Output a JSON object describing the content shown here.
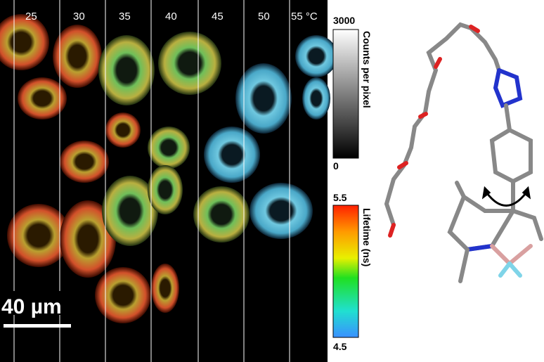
{
  "panel": {
    "temperature_labels": [
      "25",
      "30",
      "35",
      "40",
      "45",
      "50",
      "55 °C"
    ],
    "scale_bar": "40 µm"
  },
  "intensity_colorbar": {
    "max_label": "3000",
    "min_label": "0",
    "title": "Counts per pixel"
  },
  "lifetime_colorbar": {
    "max_label": "5.5",
    "min_label": "4.5",
    "title": "Lifetime (ns)"
  }
}
